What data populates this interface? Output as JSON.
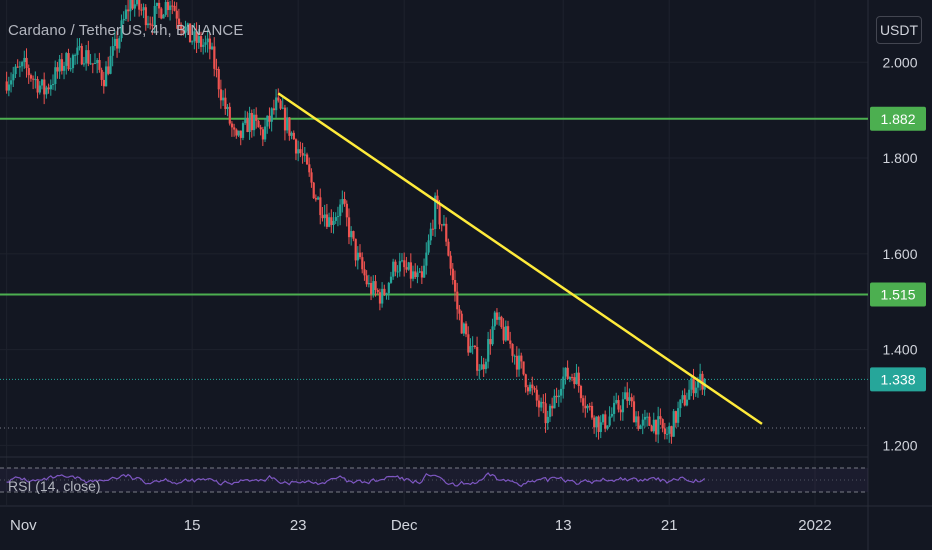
{
  "header": {
    "pair": "Cardano / TetherUS, 4h, BINANCE",
    "currency": "USDT"
  },
  "rsi": {
    "label": "RSI (14, close)",
    "color": "#7e57c2"
  },
  "colors": {
    "background": "#131722",
    "up": "#26a69a",
    "down": "#ef5350",
    "level_line": "#4caf50",
    "trendline": "#ffeb3b",
    "last_price_badge": "#26a69a"
  },
  "chart_data": {
    "type": "candlestick",
    "title": "Cardano / TetherUS, 4h, BINANCE",
    "y_axis": {
      "ticks": [
        "2.000",
        "1.800",
        "1.600",
        "1.400",
        "1.200"
      ],
      "tick_values": [
        2.0,
        1.8,
        1.6,
        1.4,
        1.2
      ],
      "range": [
        1.18,
        2.13
      ],
      "scale": "linear"
    },
    "x_axis": {
      "ticks": [
        "Nov",
        "15",
        "23",
        "Dec",
        "13",
        "21",
        "2022"
      ],
      "tick_days": [
        0,
        14,
        22,
        30,
        42,
        50,
        61
      ],
      "range_days": [
        -0.5,
        65
      ]
    },
    "horizontal_levels": [
      {
        "value": 1.882,
        "label": "1.882"
      },
      {
        "value": 1.515,
        "label": "1.515"
      }
    ],
    "last_price": {
      "value": 1.338,
      "label": "1.338"
    },
    "trendline": {
      "from": {
        "day": 20.5,
        "price": 1.935
      },
      "to": {
        "day": 57.0,
        "price": 1.245
      }
    },
    "price_path": [
      {
        "day": 0,
        "price": 1.96
      },
      {
        "day": 1.5,
        "price": 1.99
      },
      {
        "day": 3,
        "price": 1.94
      },
      {
        "day": 4.5,
        "price": 2.0
      },
      {
        "day": 6,
        "price": 2.02
      },
      {
        "day": 7.5,
        "price": 1.97
      },
      {
        "day": 8.5,
        "price": 2.04
      },
      {
        "day": 9.5,
        "price": 2.13
      },
      {
        "day": 11,
        "price": 2.09
      },
      {
        "day": 12.5,
        "price": 2.13
      },
      {
        "day": 14,
        "price": 2.05
      },
      {
        "day": 15.5,
        "price": 2.03
      },
      {
        "day": 16.5,
        "price": 1.92
      },
      {
        "day": 17.5,
        "price": 1.83
      },
      {
        "day": 18.5,
        "price": 1.88
      },
      {
        "day": 19.5,
        "price": 1.85
      },
      {
        "day": 20.5,
        "price": 1.91
      },
      {
        "day": 21.5,
        "price": 1.86
      },
      {
        "day": 22.5,
        "price": 1.8
      },
      {
        "day": 23.5,
        "price": 1.72
      },
      {
        "day": 24.5,
        "price": 1.67
      },
      {
        "day": 25.5,
        "price": 1.7
      },
      {
        "day": 26.5,
        "price": 1.6
      },
      {
        "day": 27.5,
        "price": 1.53
      },
      {
        "day": 28.5,
        "price": 1.51
      },
      {
        "day": 29.5,
        "price": 1.58
      },
      {
        "day": 30.5,
        "price": 1.56
      },
      {
        "day": 31.5,
        "price": 1.54
      },
      {
        "day": 32.5,
        "price": 1.7
      },
      {
        "day": 33.3,
        "price": 1.64
      },
      {
        "day": 34.2,
        "price": 1.48
      },
      {
        "day": 35,
        "price": 1.41
      },
      {
        "day": 36,
        "price": 1.36
      },
      {
        "day": 37,
        "price": 1.46
      },
      {
        "day": 38,
        "price": 1.42
      },
      {
        "day": 39,
        "price": 1.36
      },
      {
        "day": 40,
        "price": 1.3
      },
      {
        "day": 41,
        "price": 1.25
      },
      {
        "day": 42,
        "price": 1.34
      },
      {
        "day": 43,
        "price": 1.35
      },
      {
        "day": 44,
        "price": 1.28
      },
      {
        "day": 45,
        "price": 1.24
      },
      {
        "day": 46,
        "price": 1.27
      },
      {
        "day": 47,
        "price": 1.3
      },
      {
        "day": 48,
        "price": 1.24
      },
      {
        "day": 49,
        "price": 1.25
      },
      {
        "day": 50,
        "price": 1.22
      },
      {
        "day": 51,
        "price": 1.28
      },
      {
        "day": 52,
        "price": 1.33
      },
      {
        "day": 52.8,
        "price": 1.338
      }
    ]
  }
}
